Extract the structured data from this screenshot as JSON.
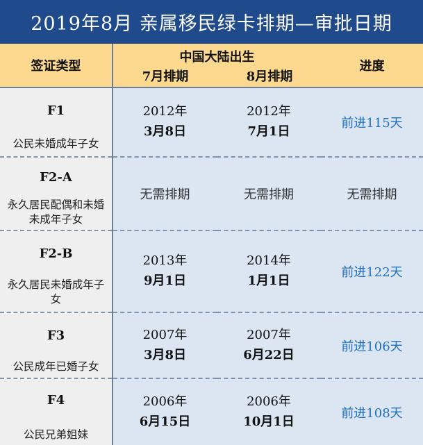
{
  "title": "2019年8月  亲属移民绿卡排期—审批日期",
  "header": {
    "visa_type": "签证类型",
    "region": "中国大陆出生",
    "jul": "7月排期",
    "aug": "8月排期",
    "progress": "进度"
  },
  "rows": [
    {
      "code": "F1",
      "desc": "公民未婚成年子女",
      "jul_year": "2012年",
      "jul_md": "3月8日",
      "aug_year": "2012年",
      "aug_md": "7月1日",
      "progress": "前进115天"
    },
    {
      "code": "F2-A",
      "desc": "永久居民配偶和未婚未成年子女",
      "jul_text": "无需排期",
      "aug_text": "无需排期",
      "progress": "无需排期"
    },
    {
      "code": "F2-B",
      "desc": "永久居民未婚成年子女",
      "jul_year": "2013年",
      "jul_md": "9月1日",
      "aug_year": "2014年",
      "aug_md": "1月1日",
      "progress": "前进122天"
    },
    {
      "code": "F3",
      "desc": "公民成年已婚子女",
      "jul_year": "2007年",
      "jul_md": "3月8日",
      "aug_year": "2007年",
      "aug_md": "6月22日",
      "progress": "前进106天"
    },
    {
      "code": "F4",
      "desc": "公民兄弟姐妹",
      "jul_year": "2006年",
      "jul_md": "6月15日",
      "aug_year": "2006年",
      "aug_md": "10月1日",
      "progress": "前进108天"
    }
  ],
  "colors": {
    "title_bg": "#1f4a8c",
    "header_bg": "#fdd98f",
    "type_bg": "#efefef",
    "date_bg": "#dce6f3",
    "advance_text": "#1f6fc0"
  }
}
